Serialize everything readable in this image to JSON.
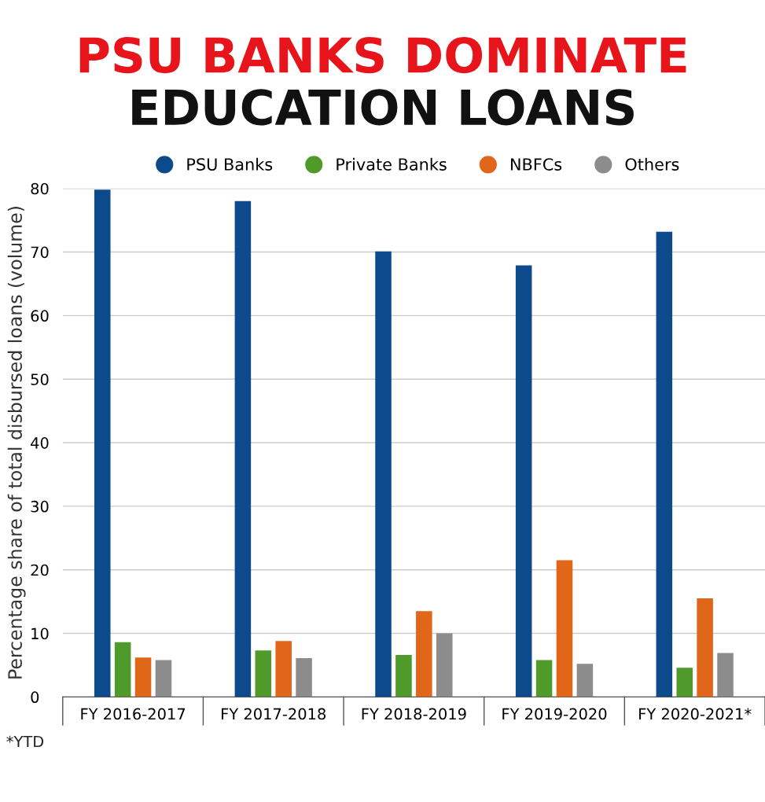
{
  "chart_data": {
    "type": "bar",
    "title": "PSU BANKS DOMINATE",
    "subtitle": "EDUCATION LOANS",
    "ylabel": "Percentage share of total disbursed loans (volume)",
    "categories": [
      "FY 2016-2017",
      "FY 2017-2018",
      "FY 2018-2019",
      "FY 2019-2020",
      "FY 2020-2021*"
    ],
    "series": [
      {
        "name": "PSU Banks",
        "color": "#0d4a8c",
        "values": [
          79.8,
          78.0,
          70.1,
          67.9,
          73.2
        ]
      },
      {
        "name": "Private Banks",
        "color": "#4f9a2a",
        "values": [
          8.6,
          7.3,
          6.6,
          5.8,
          4.6
        ]
      },
      {
        "name": "NBFCs",
        "color": "#e0661a",
        "values": [
          6.2,
          8.8,
          13.5,
          21.5,
          15.5
        ]
      },
      {
        "name": "Others",
        "color": "#8c8c8c",
        "values": [
          5.8,
          6.1,
          10.0,
          5.2,
          6.9
        ]
      }
    ],
    "ylim": [
      0,
      80
    ],
    "yticks": [
      0,
      10,
      20,
      30,
      40,
      50,
      60,
      70,
      80
    ],
    "grid": "y",
    "legend": "top",
    "annotations": [
      "*YTD"
    ]
  }
}
